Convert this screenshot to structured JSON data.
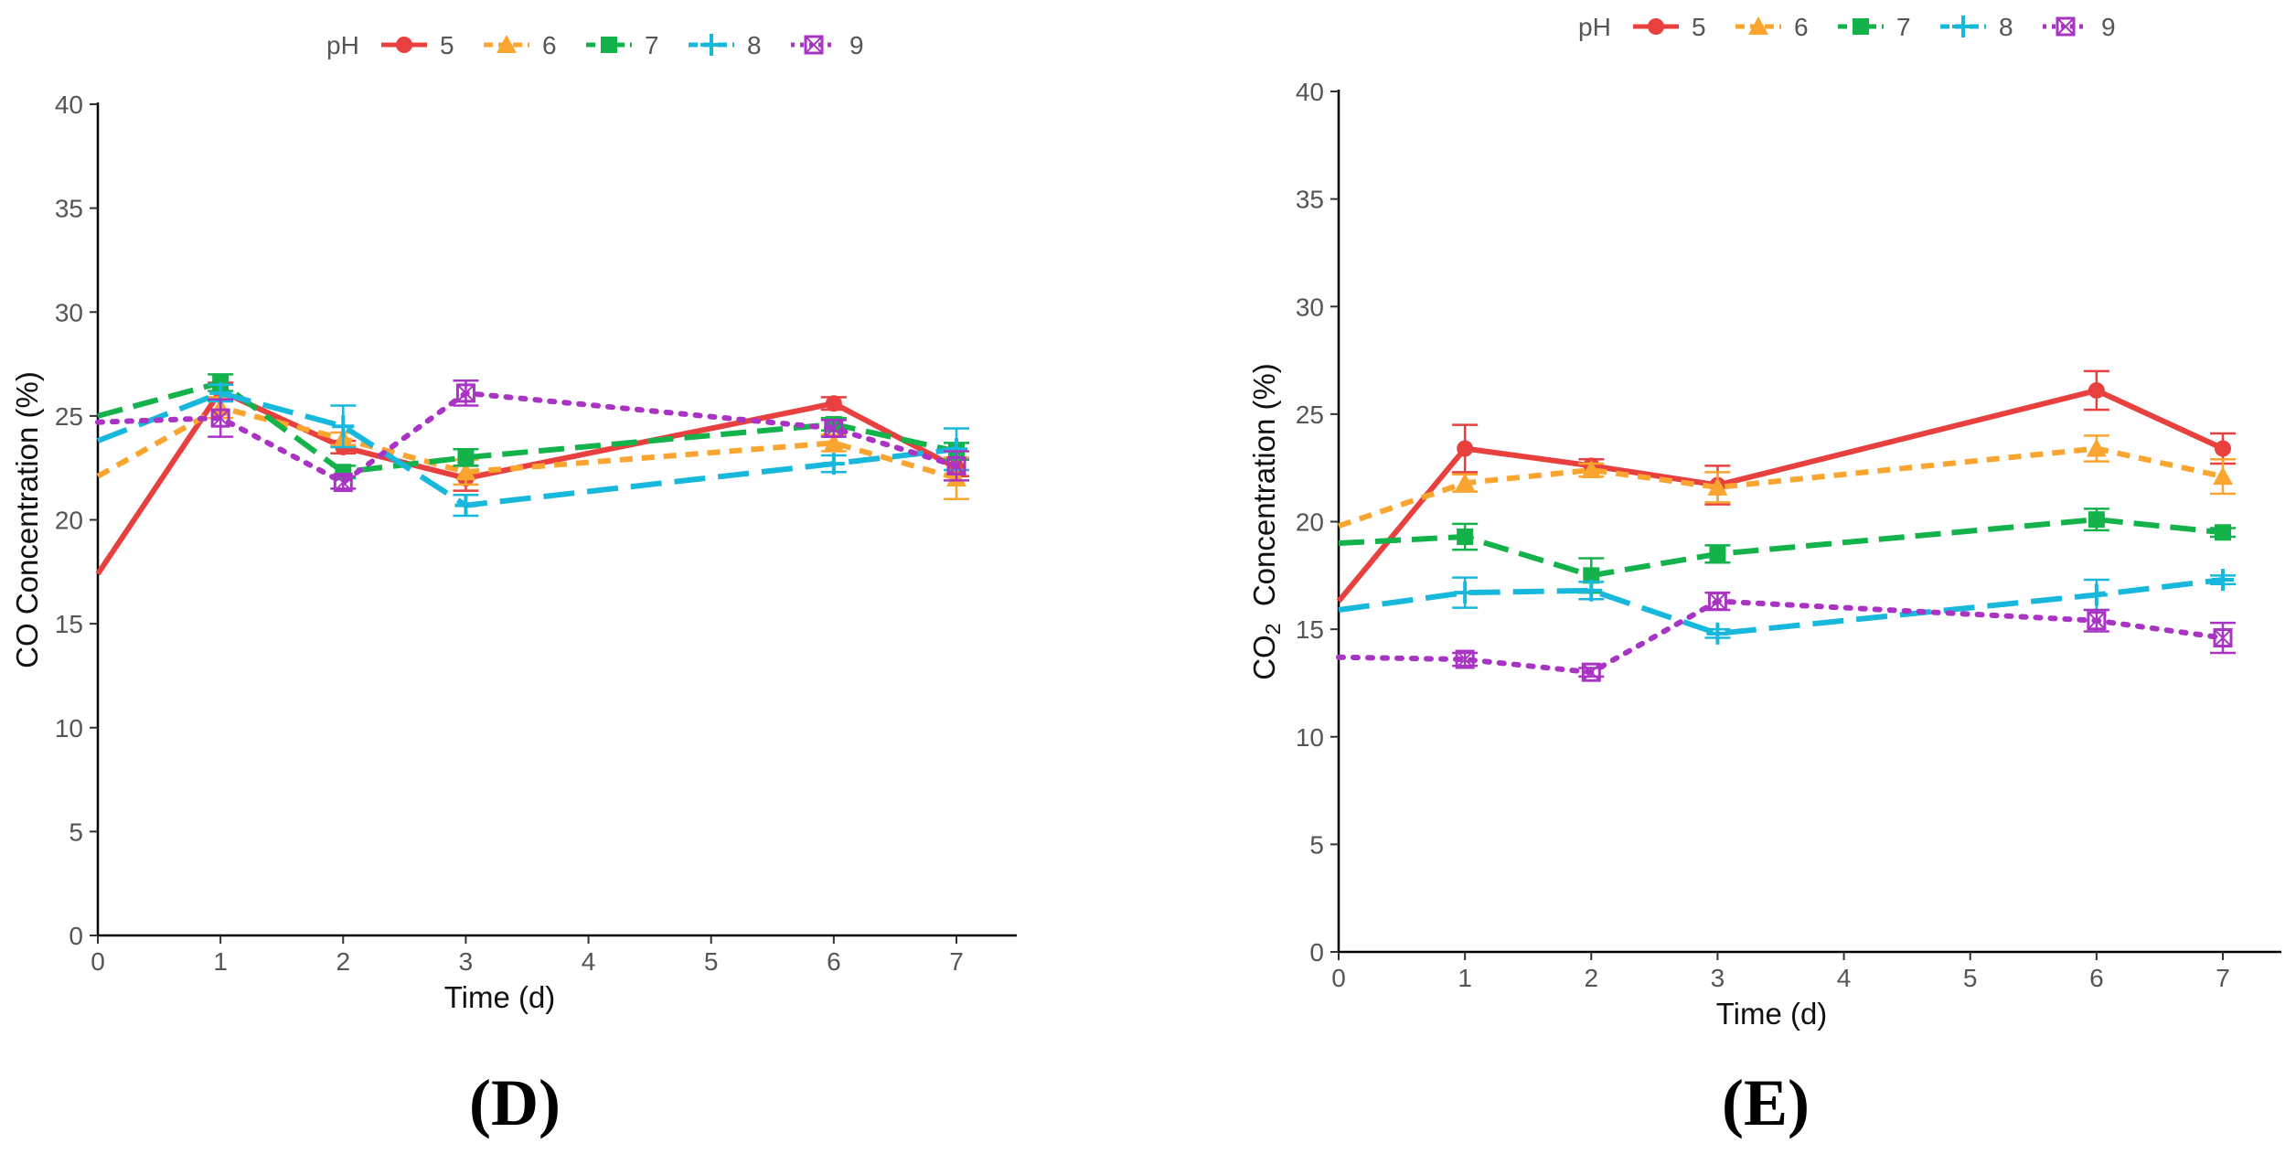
{
  "chart_data": [
    {
      "type": "line",
      "panel_label": "(D)",
      "legend_title": "pH",
      "xlabel": "Time (d)",
      "ylabel": "CO Concentration (%)",
      "ylabel_sub": "",
      "ylabel_rest": "",
      "xlim": [
        0,
        7.5
      ],
      "ylim": [
        0,
        40
      ],
      "x_ticks": [
        0,
        1,
        2,
        3,
        4,
        5,
        6,
        7
      ],
      "y_ticks": [
        0,
        5,
        10,
        15,
        20,
        25,
        30,
        35,
        40
      ],
      "x": [
        0,
        1,
        2,
        3,
        6,
        7
      ],
      "series": [
        {
          "name": "5",
          "values": [
            17.4,
            26.2,
            23.5,
            22.0,
            25.6,
            22.5
          ],
          "errors": [
            0,
            0.4,
            0.3,
            0.6,
            0.3,
            0.4
          ]
        },
        {
          "name": "6",
          "values": [
            22.1,
            25.4,
            23.9,
            22.3,
            23.7,
            22.0
          ],
          "errors": [
            0,
            0.5,
            0.3,
            0.6,
            0.4,
            1.0
          ]
        },
        {
          "name": "7",
          "values": [
            25.0,
            26.6,
            22.3,
            23.0,
            24.6,
            23.3
          ],
          "errors": [
            0,
            0.4,
            0.3,
            0.4,
            0.3,
            0.4
          ]
        },
        {
          "name": "8",
          "values": [
            23.8,
            26.1,
            24.5,
            20.7,
            22.7,
            23.4
          ],
          "errors": [
            0,
            0.4,
            1.0,
            0.5,
            0.4,
            1.0
          ]
        },
        {
          "name": "9",
          "values": [
            24.7,
            24.9,
            21.8,
            26.1,
            24.4,
            22.6
          ],
          "errors": [
            0,
            0.9,
            0.3,
            0.6,
            0.4,
            0.7
          ]
        }
      ]
    },
    {
      "type": "line",
      "panel_label": "(E)",
      "legend_title": "pH",
      "xlabel": "Time (d)",
      "ylabel": "CO",
      "ylabel_sub": "2",
      "ylabel_rest": "  Concentration (%)",
      "xlim": [
        0,
        7.5
      ],
      "ylim": [
        0,
        40
      ],
      "x_ticks": [
        0,
        1,
        2,
        3,
        4,
        5,
        6,
        7
      ],
      "y_ticks": [
        0,
        5,
        10,
        15,
        20,
        25,
        30,
        35,
        40
      ],
      "x": [
        0,
        1,
        2,
        3,
        6,
        7
      ],
      "series": [
        {
          "name": "5",
          "values": [
            16.3,
            23.4,
            22.6,
            21.7,
            26.1,
            23.4
          ],
          "errors": [
            0,
            1.1,
            0.3,
            0.9,
            0.9,
            0.7
          ]
        },
        {
          "name": "6",
          "values": [
            19.8,
            21.8,
            22.4,
            21.6,
            23.4,
            22.1
          ],
          "errors": [
            0,
            0.4,
            0.3,
            0.7,
            0.6,
            0.8
          ]
        },
        {
          "name": "7",
          "values": [
            19.0,
            19.3,
            17.5,
            18.5,
            20.1,
            19.5
          ],
          "errors": [
            0,
            0.6,
            0.8,
            0.4,
            0.5,
            0.2
          ]
        },
        {
          "name": "8",
          "values": [
            15.9,
            16.7,
            16.8,
            14.8,
            16.6,
            17.3
          ],
          "errors": [
            0,
            0.7,
            0.4,
            0.2,
            0.7,
            0.2
          ]
        },
        {
          "name": "9",
          "values": [
            13.7,
            13.6,
            13.0,
            16.3,
            15.4,
            14.6
          ],
          "errors": [
            0,
            0.3,
            0.2,
            0.4,
            0.5,
            0.7
          ]
        }
      ]
    }
  ],
  "colors": {
    "5": "#e8403f",
    "6": "#f9a530",
    "7": "#13b24b",
    "8": "#18b8dc",
    "9": "#a934c4"
  }
}
